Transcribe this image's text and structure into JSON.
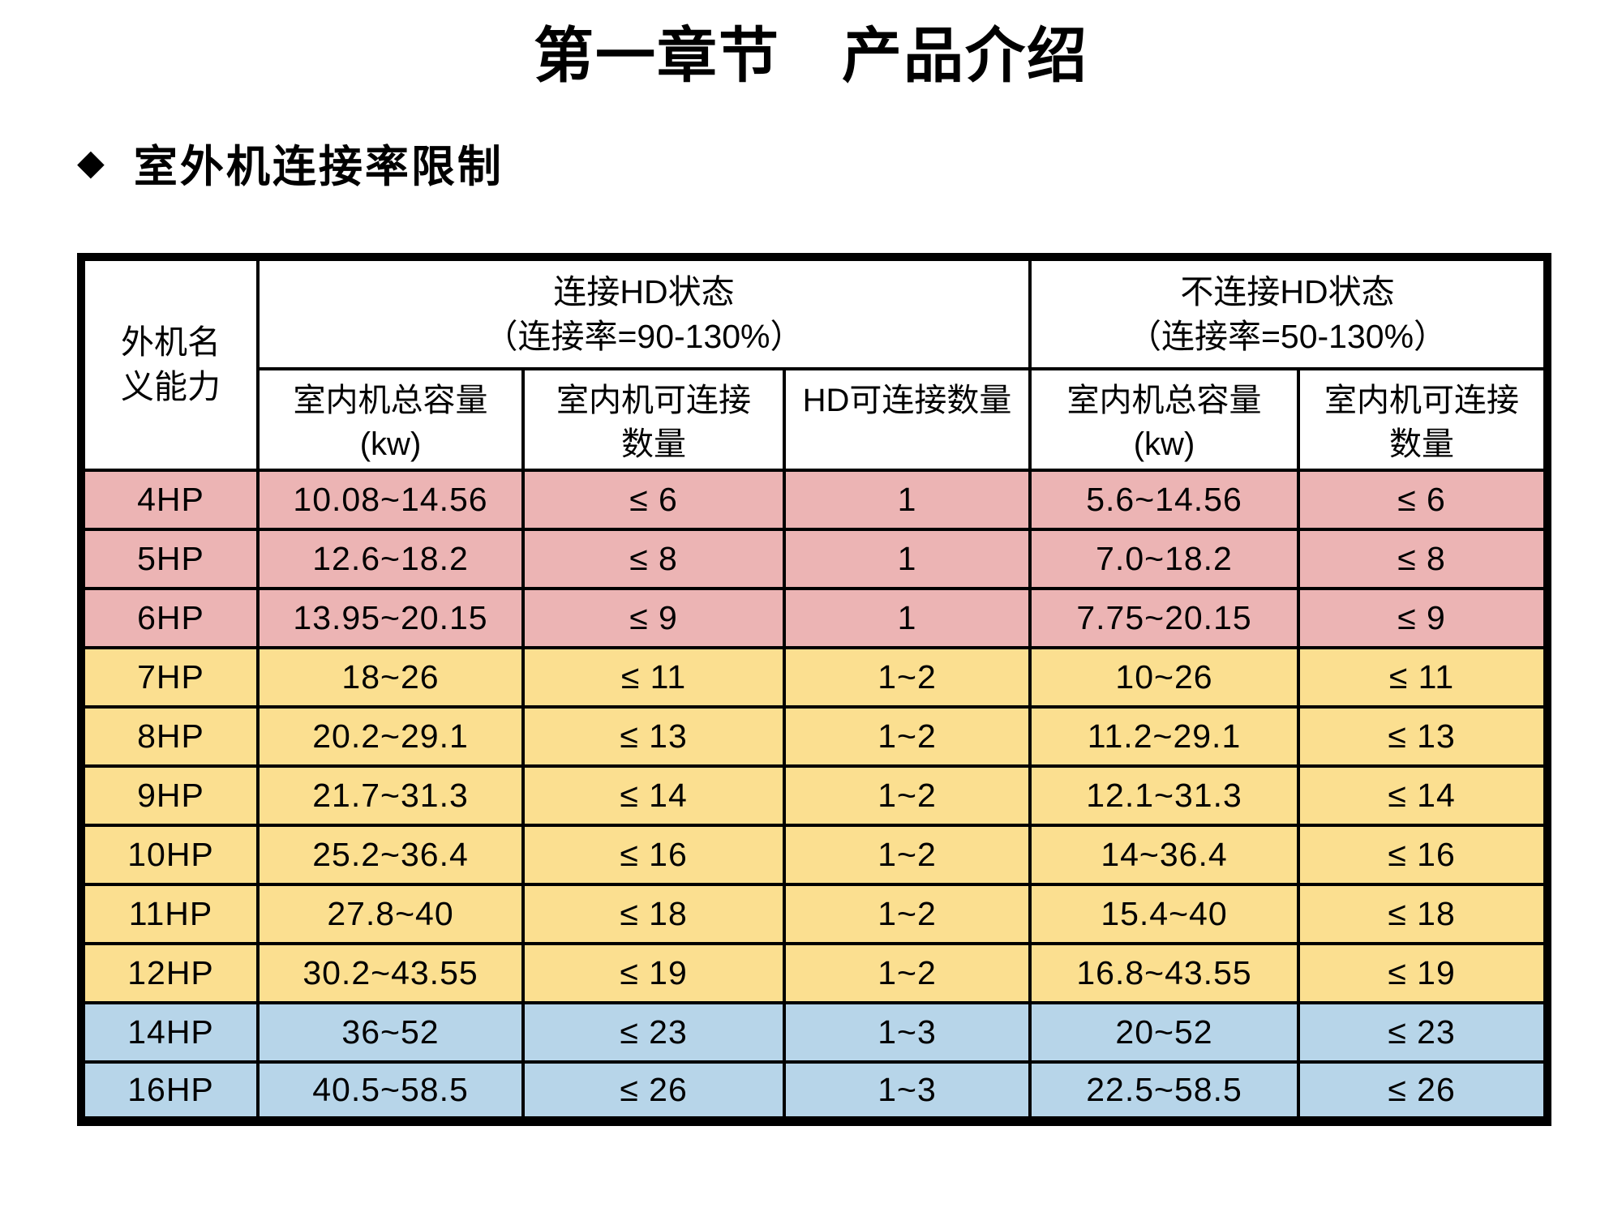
{
  "page": {
    "title": "第一章节　产品介绍",
    "section_bullet": "◆",
    "section_title": "室外机连接率限制"
  },
  "table": {
    "corner_header": "外机名\n义能力",
    "group_headers": [
      "连接HD状态\n（连接率=90-130%）",
      "不连接HD状态\n（连接率=50-130%）"
    ],
    "sub_headers": [
      "室内机总容量\n(kw)",
      "室内机可连接\n数量",
      "HD可连接数量",
      "室内机总容量\n(kw)",
      "室内机可连接\n数量"
    ],
    "row_colors": {
      "pink": "#ECB4B4",
      "yellow": "#FBDF90",
      "blue": "#B7D5E9"
    },
    "rows": [
      {
        "hp": "4HP",
        "color": "pink",
        "cells": [
          "10.08~14.56",
          "≤ 6",
          "1",
          "5.6~14.56",
          "≤ 6"
        ]
      },
      {
        "hp": "5HP",
        "color": "pink",
        "cells": [
          "12.6~18.2",
          "≤ 8",
          "1",
          "7.0~18.2",
          "≤ 8"
        ]
      },
      {
        "hp": "6HP",
        "color": "pink",
        "cells": [
          "13.95~20.15",
          "≤ 9",
          "1",
          "7.75~20.15",
          "≤ 9"
        ]
      },
      {
        "hp": "7HP",
        "color": "yellow",
        "cells": [
          "18~26",
          "≤ 11",
          "1~2",
          "10~26",
          "≤ 11"
        ]
      },
      {
        "hp": "8HP",
        "color": "yellow",
        "cells": [
          "20.2~29.1",
          "≤ 13",
          "1~2",
          "11.2~29.1",
          "≤ 13"
        ]
      },
      {
        "hp": "9HP",
        "color": "yellow",
        "cells": [
          "21.7~31.3",
          "≤ 14",
          "1~2",
          "12.1~31.3",
          "≤ 14"
        ]
      },
      {
        "hp": "10HP",
        "color": "yellow",
        "cells": [
          "25.2~36.4",
          "≤ 16",
          "1~2",
          "14~36.4",
          "≤ 16"
        ]
      },
      {
        "hp": "11HP",
        "color": "yellow",
        "cells": [
          "27.8~40",
          "≤ 18",
          "1~2",
          "15.4~40",
          "≤ 18"
        ]
      },
      {
        "hp": "12HP",
        "color": "yellow",
        "cells": [
          "30.2~43.55",
          "≤ 19",
          "1~2",
          "16.8~43.55",
          "≤ 19"
        ]
      },
      {
        "hp": "14HP",
        "color": "blue",
        "cells": [
          "36~52",
          "≤ 23",
          "1~3",
          "20~52",
          "≤ 23"
        ]
      },
      {
        "hp": "16HP",
        "color": "blue",
        "cells": [
          "40.5~58.5",
          "≤ 26",
          "1~3",
          "22.5~58.5",
          "≤ 26"
        ]
      }
    ]
  }
}
